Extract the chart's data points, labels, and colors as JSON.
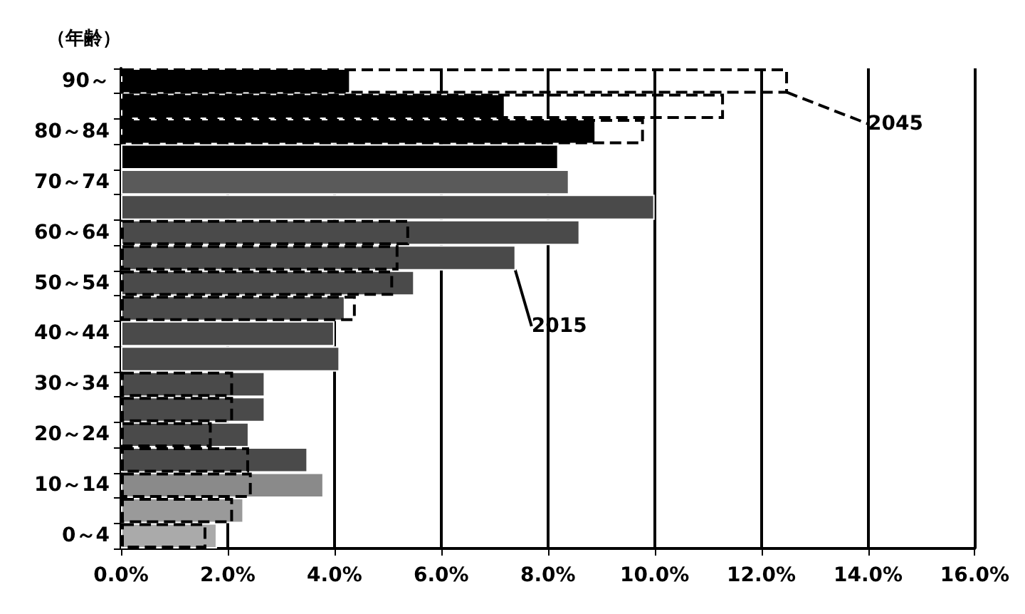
{
  "chart_data": {
    "type": "bar",
    "orientation": "horizontal",
    "ylabel": "（年齢）",
    "categories": [
      "90～",
      null,
      "80～84",
      null,
      "70～74",
      null,
      "60～64",
      null,
      "50～54",
      null,
      "40～44",
      null,
      "30～34",
      null,
      "20～24",
      null,
      "10～14",
      null,
      "0～4"
    ],
    "series": [
      {
        "name": "2015",
        "colors": [
          "#000000",
          "#000000",
          "#000000",
          "#000000",
          "#5a5a5a",
          "#4a4a4a",
          "#4a4a4a",
          "#4a4a4a",
          "#4a4a4a",
          "#4a4a4a",
          "#4a4a4a",
          "#4a4a4a",
          "#4a4a4a",
          "#4a4a4a",
          "#4a4a4a",
          "#4a4a4a",
          "#8a8a8a",
          "#9a9a9a",
          "#aaaaaa"
        ],
        "values": [
          4.3,
          7.2,
          8.9,
          8.2,
          8.4,
          10.0,
          8.6,
          7.4,
          5.5,
          4.2,
          4.0,
          4.1,
          2.7,
          2.7,
          2.4,
          3.5,
          3.8,
          2.3,
          1.8
        ]
      },
      {
        "name": "2045",
        "color": "#000000",
        "line_style": "dashed",
        "values": [
          12.5,
          11.3,
          9.8,
          null,
          null,
          null,
          5.4,
          5.2,
          5.1,
          4.4,
          null,
          null,
          2.1,
          2.1,
          1.7,
          2.4,
          2.45,
          2.1,
          1.6
        ]
      }
    ],
    "xlim": [
      0,
      16
    ],
    "xticks": [
      {
        "value": 0,
        "label": "0.0%"
      },
      {
        "value": 2,
        "label": "2.0%"
      },
      {
        "value": 4,
        "label": "4.0%"
      },
      {
        "value": 6,
        "label": "6.0%"
      },
      {
        "value": 8,
        "label": "8.0%"
      },
      {
        "value": 10,
        "label": "10.0%"
      },
      {
        "value": 12,
        "label": "12.0%"
      },
      {
        "value": 14,
        "label": "14.0%"
      },
      {
        "value": 16,
        "label": "16.0%"
      }
    ],
    "grid": "x"
  }
}
